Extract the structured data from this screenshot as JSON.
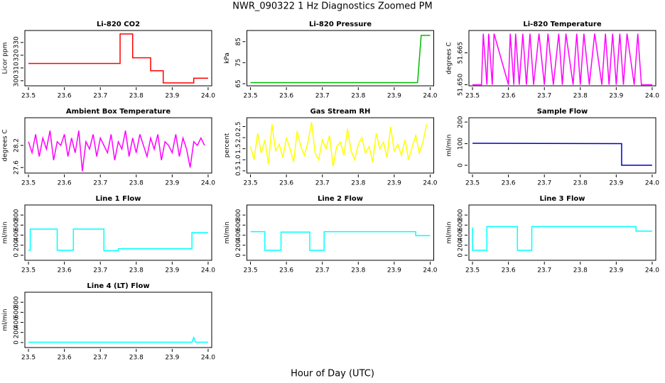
{
  "title": "NWR_090322  1 Hz Diagnostics Zoomed PM",
  "xlabel": "Hour of Day (UTC)",
  "chart_data": [
    {
      "type": "line",
      "title": "Li-820 CO2",
      "ylabel": "Licor ppm",
      "color": "#ff0000",
      "x": [
        23.5,
        23.755,
        23.755,
        23.79,
        23.79,
        23.84,
        23.84,
        23.875,
        23.875,
        23.96,
        23.96,
        24.0
      ],
      "values": [
        313.5,
        313.5,
        336.7,
        336.7,
        318,
        318,
        307.8,
        307.8,
        298.3,
        298.3,
        302,
        302
      ],
      "xlim": [
        23.49,
        24.01
      ],
      "xticks": [
        23.5,
        23.6,
        23.7,
        23.8,
        23.9,
        {
          "value": 24,
          "label": "24.0"
        }
      ],
      "ylim": [
        296,
        339.4
      ],
      "yticks": [
        300,
        310,
        320,
        330
      ]
    },
    {
      "type": "line",
      "title": "Li-820 Pressure",
      "ylabel": "kPa",
      "color": "#00bb00",
      "x": [
        23.5,
        23.965,
        23.975,
        24.0
      ],
      "values": [
        65.5,
        65.5,
        88,
        88
      ],
      "xlim": [
        23.49,
        24.01
      ],
      "xticks": [
        23.5,
        23.6,
        23.7,
        23.8,
        23.9,
        {
          "value": 24,
          "label": "24.0"
        }
      ],
      "ylim": [
        64,
        90.3
      ],
      "yticks": [
        65,
        75,
        85
      ]
    },
    {
      "type": "line",
      "title": "Li-820 Temperature",
      "ylabel": "degrees C",
      "color": "#ff00ff",
      "x": [
        23.5,
        23.525,
        23.53,
        23.54,
        23.545,
        23.555,
        23.56,
        23.6,
        23.605,
        23.615,
        23.62,
        23.63,
        23.64,
        23.65,
        23.66,
        23.67,
        23.685,
        23.7,
        23.71,
        23.725,
        23.74,
        23.75,
        23.76,
        23.78,
        23.79,
        23.8,
        23.81,
        23.825,
        23.84,
        23.86,
        23.87,
        23.88,
        23.89,
        23.9,
        23.91,
        23.92,
        23.93,
        23.95,
        23.96,
        23.97,
        23.98,
        24.0
      ],
      "values": [
        51.65,
        51.65,
        51.674,
        51.65,
        51.674,
        51.65,
        51.674,
        51.65,
        51.674,
        51.65,
        51.674,
        51.65,
        51.674,
        51.65,
        51.674,
        51.65,
        51.674,
        51.65,
        51.674,
        51.65,
        51.674,
        51.65,
        51.674,
        51.65,
        51.674,
        51.65,
        51.674,
        51.65,
        51.674,
        51.65,
        51.674,
        51.65,
        51.674,
        51.65,
        51.674,
        51.65,
        51.674,
        51.65,
        51.674,
        51.65,
        51.65,
        51.65
      ],
      "xlim": [
        23.49,
        24.01
      ],
      "xticks": [
        23.5,
        23.6,
        23.7,
        23.8,
        23.9,
        {
          "value": 24,
          "label": "24.0"
        }
      ],
      "ylim": [
        51.6495,
        51.6755
      ],
      "yticks": [
        {
          "value": 51.65,
          "label": "51.650"
        },
        51.665
      ]
    },
    {
      "type": "line",
      "title": "Ambient Box Temperature",
      "ylabel": "degrees C",
      "color": "#ff00ff",
      "x": [
        23.5,
        23.51,
        23.52,
        23.53,
        23.54,
        23.55,
        23.56,
        23.57,
        23.58,
        23.59,
        23.6,
        23.61,
        23.62,
        23.63,
        23.64,
        23.65,
        23.66,
        23.67,
        23.68,
        23.69,
        23.7,
        23.71,
        23.72,
        23.73,
        23.74,
        23.75,
        23.76,
        23.77,
        23.78,
        23.79,
        23.8,
        23.81,
        23.82,
        23.83,
        23.84,
        23.85,
        23.86,
        23.87,
        23.88,
        23.89,
        23.9,
        23.91,
        23.92,
        23.93,
        23.94,
        23.95,
        23.96,
        23.97,
        23.98,
        23.99
      ],
      "values": [
        28.3,
        28.0,
        28.5,
        27.9,
        28.4,
        28.1,
        28.6,
        27.8,
        28.3,
        28.2,
        28.5,
        27.9,
        28.4,
        28.0,
        28.6,
        27.5,
        28.3,
        28.1,
        28.5,
        27.9,
        28.4,
        28.2,
        28.0,
        28.5,
        27.8,
        28.3,
        28.1,
        28.6,
        27.9,
        28.4,
        28.0,
        28.5,
        28.2,
        27.9,
        28.4,
        28.1,
        28.5,
        27.8,
        28.3,
        28.2,
        28.0,
        28.5,
        27.9,
        28.4,
        28.1,
        27.6,
        28.3,
        28.2,
        28.4,
        28.2
      ],
      "xlim": [
        23.49,
        24.01
      ],
      "xticks": [
        23.5,
        23.6,
        23.7,
        23.8,
        23.9,
        {
          "value": 24,
          "label": "24.0"
        }
      ],
      "ylim": [
        27.45,
        28.95
      ],
      "yticks": [
        27.6,
        28.2
      ]
    },
    {
      "type": "line",
      "title": "Gas Stream RH",
      "ylabel": "percent",
      "color": "#ffff00",
      "x": [
        23.5,
        23.51,
        23.52,
        23.53,
        23.54,
        23.55,
        23.56,
        23.57,
        23.58,
        23.59,
        23.6,
        23.61,
        23.62,
        23.63,
        23.64,
        23.65,
        23.66,
        23.67,
        23.68,
        23.69,
        23.7,
        23.71,
        23.72,
        23.73,
        23.74,
        23.75,
        23.76,
        23.77,
        23.78,
        23.79,
        23.8,
        23.81,
        23.82,
        23.83,
        23.84,
        23.85,
        23.86,
        23.87,
        23.88,
        23.89,
        23.9,
        23.91,
        23.92,
        23.93,
        23.94,
        23.95,
        23.96,
        23.97,
        23.98,
        23.99
      ],
      "values": [
        1.6,
        1.0,
        2.2,
        1.3,
        1.9,
        0.8,
        2.6,
        1.4,
        1.7,
        1.1,
        2.0,
        1.5,
        0.9,
        2.3,
        1.6,
        1.2,
        1.8,
        2.7,
        1.3,
        1.0,
        1.9,
        1.5,
        2.1,
        0.7,
        1.6,
        1.8,
        1.2,
        2.4,
        1.4,
        1.0,
        1.7,
        2.0,
        1.3,
        1.6,
        0.9,
        2.2,
        1.5,
        1.8,
        1.1,
        2.5,
        1.4,
        1.7,
        1.2,
        1.9,
        1.0,
        1.6,
        2.1,
        1.3,
        1.8,
        2.6
      ],
      "xlim": [
        23.49,
        24.01
      ],
      "xticks": [
        23.5,
        23.6,
        23.7,
        23.8,
        23.9,
        {
          "value": 24,
          "label": "24.0"
        }
      ],
      "ylim": [
        0.4,
        2.9
      ],
      "yticks": [
        0.5,
        {
          "value": 1,
          "label": "1.0"
        },
        1.5,
        {
          "value": 2,
          "label": "2.0"
        },
        2.5
      ]
    },
    {
      "type": "line",
      "title": "Sample Flow",
      "ylabel": "ml/min",
      "color": "#0000cc",
      "x": [
        23.5,
        23.915,
        23.915,
        24.0
      ],
      "values": [
        102,
        100,
        0,
        0
      ],
      "xlim": [
        23.49,
        24.01
      ],
      "xticks": [
        23.5,
        23.6,
        23.7,
        23.8,
        23.9,
        {
          "value": 24,
          "label": "24.0"
        }
      ],
      "ylim": [
        -36,
        220
      ],
      "yticks": [
        0,
        100,
        200
      ]
    },
    {
      "type": "line",
      "title": "Line 1 Flow",
      "ylabel": "ml/min",
      "color": "#00ffff",
      "x": [
        23.5,
        23.505,
        23.505,
        23.58,
        23.58,
        23.625,
        23.625,
        23.71,
        23.71,
        23.75,
        23.75,
        23.955,
        23.955,
        24.0
      ],
      "values": [
        100,
        100,
        520,
        520,
        100,
        100,
        520,
        520,
        90,
        90,
        130,
        130,
        450,
        450
      ],
      "xlim": [
        23.49,
        24.01
      ],
      "xticks": [
        23.5,
        23.6,
        23.7,
        23.8,
        23.9,
        {
          "value": 24,
          "label": "24.0"
        }
      ],
      "ylim": [
        -100,
        1000
      ],
      "yticks": [
        0,
        200,
        400,
        600,
        800
      ]
    },
    {
      "type": "line",
      "title": "Line 2 Flow",
      "ylabel": "ml/min",
      "color": "#00ffff",
      "x": [
        23.5,
        23.54,
        23.54,
        23.585,
        23.585,
        23.665,
        23.665,
        23.705,
        23.705,
        23.96,
        23.96,
        24.0
      ],
      "values": [
        470,
        470,
        100,
        100,
        460,
        460,
        100,
        100,
        470,
        470,
        390,
        390
      ],
      "xlim": [
        23.49,
        24.01
      ],
      "xticks": [
        23.5,
        23.6,
        23.7,
        23.8,
        23.9,
        {
          "value": 24,
          "label": "24.0"
        }
      ],
      "ylim": [
        -100,
        1000
      ],
      "yticks": [
        0,
        200,
        400,
        600,
        800
      ]
    },
    {
      "type": "line",
      "title": "Line 3 Flow",
      "ylabel": "ml/min",
      "color": "#00ffff",
      "x": [
        23.5,
        23.5,
        23.54,
        23.54,
        23.625,
        23.625,
        23.665,
        23.665,
        23.955,
        23.955,
        24.0
      ],
      "values": [
        550,
        100,
        100,
        570,
        570,
        100,
        100,
        570,
        570,
        480,
        480
      ],
      "xlim": [
        23.49,
        24.01
      ],
      "xticks": [
        23.5,
        23.6,
        23.7,
        23.8,
        23.9,
        {
          "value": 24,
          "label": "24.0"
        }
      ],
      "ylim": [
        -100,
        1000
      ],
      "yticks": [
        0,
        200,
        400,
        600,
        800
      ]
    },
    {
      "type": "line",
      "title": "Line 4 (LT) Flow",
      "ylabel": "ml/min",
      "color": "#00ffff",
      "x": [
        23.5,
        23.955,
        23.96,
        23.965,
        24.0
      ],
      "values": [
        5,
        5,
        100,
        5,
        5
      ],
      "xlim": [
        23.49,
        24.01
      ],
      "xticks": [
        23.5,
        23.6,
        23.7,
        23.8,
        23.9,
        {
          "value": 24,
          "label": "24.0"
        }
      ],
      "ylim": [
        -100,
        1000
      ],
      "yticks": [
        0,
        200,
        400,
        600,
        800
      ]
    }
  ]
}
